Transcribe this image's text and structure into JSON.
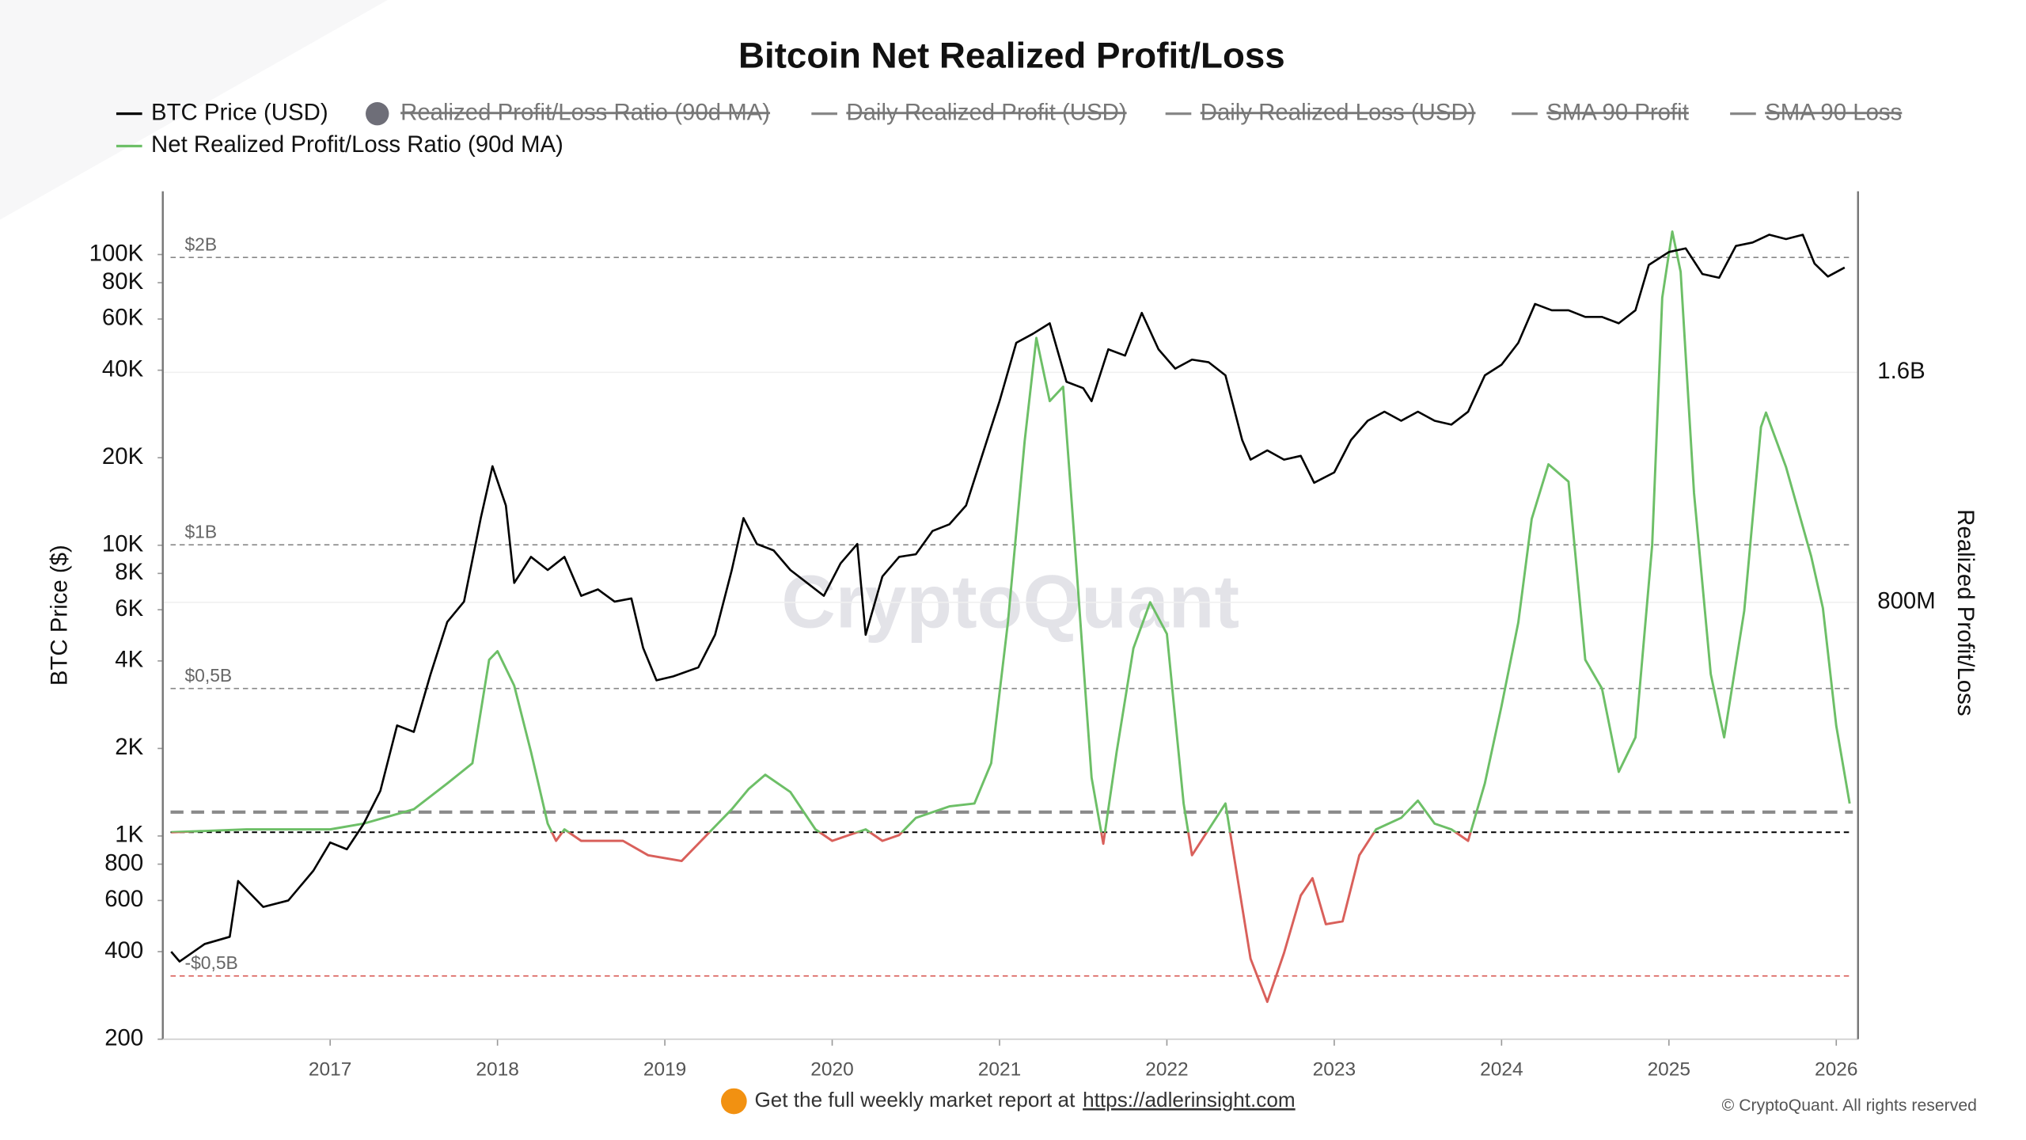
{
  "chart_data": {
    "type": "line",
    "title": "Bitcoin Net Realized Profit/Loss",
    "y_label": "BTC Price ($)",
    "y2_label": "Realized Profit/Loss",
    "watermark": "CryptoQuant",
    "footer_text": "Get the full weekly market report at",
    "footer_link": "https://adlerinsight.com",
    "copyright": "© CryptoQuant. All rights reserved",
    "xlim": [
      2016,
      2026.13
    ],
    "xticks": [
      2017,
      2018,
      2019,
      2020,
      2021,
      2022,
      2023,
      2024,
      2025,
      2026
    ],
    "ylog": true,
    "ylim": [
      200,
      165000
    ],
    "yticks": [
      200,
      400,
      600,
      800,
      {
        "value": 1000,
        "label": "1K"
      },
      {
        "value": 2000,
        "label": "2K"
      },
      {
        "value": 4000,
        "label": "4K"
      },
      {
        "value": 6000,
        "label": "6K"
      },
      {
        "value": 8000,
        "label": "8K"
      },
      {
        "value": 10000,
        "label": "10K"
      },
      {
        "value": 20000,
        "label": "20K"
      },
      {
        "value": 40000,
        "label": "40K"
      },
      {
        "value": 60000,
        "label": "60K"
      },
      {
        "value": 80000,
        "label": "80K"
      },
      {
        "value": 100000,
        "label": "100K"
      }
    ],
    "y2lim": [
      -0.72,
      2.23
    ],
    "y2ticks": [
      {
        "value": 0.8,
        "label": "800M"
      },
      {
        "value": 1.6,
        "label": "1.6B"
      }
    ],
    "grid": "y2",
    "annotations": [
      {
        "value": 2,
        "label": "$2B",
        "color": "#888888"
      },
      {
        "value": 1,
        "label": "$1B",
        "color": "#888888"
      },
      {
        "value": 0.5,
        "label": "$0,5B",
        "color": "#888888"
      },
      {
        "value": -0.5,
        "label": "-$0,5B",
        "color": "#d9605b"
      }
    ],
    "reference_lines": [
      {
        "value": 0,
        "color": "#000000"
      },
      {
        "value": 0.07,
        "color": "#8a8a8a"
      }
    ],
    "series": [
      {
        "name": "BTC Price (USD)",
        "color": "#000000",
        "marker": "line",
        "axis": "y",
        "x": [
          2016.05,
          2016.1,
          2016.25,
          2016.4,
          2016.45,
          2016.6,
          2016.75,
          2016.9,
          2017.0,
          2017.1,
          2017.2,
          2017.3,
          2017.4,
          2017.5,
          2017.6,
          2017.7,
          2017.8,
          2017.9,
          2017.97,
          2018.05,
          2018.1,
          2018.2,
          2018.3,
          2018.4,
          2018.5,
          2018.6,
          2018.7,
          2018.8,
          2018.87,
          2018.95,
          2019.05,
          2019.2,
          2019.3,
          2019.4,
          2019.47,
          2019.55,
          2019.65,
          2019.75,
          2019.85,
          2019.95,
          2020.05,
          2020.15,
          2020.2,
          2020.3,
          2020.4,
          2020.5,
          2020.6,
          2020.7,
          2020.8,
          2020.9,
          2021.0,
          2021.1,
          2021.2,
          2021.3,
          2021.4,
          2021.5,
          2021.55,
          2021.65,
          2021.75,
          2021.85,
          2021.95,
          2022.05,
          2022.15,
          2022.25,
          2022.35,
          2022.45,
          2022.5,
          2022.6,
          2022.7,
          2022.8,
          2022.88,
          2023.0,
          2023.1,
          2023.2,
          2023.3,
          2023.4,
          2023.5,
          2023.6,
          2023.7,
          2023.8,
          2023.9,
          2024.0,
          2024.1,
          2024.2,
          2024.3,
          2024.4,
          2024.5,
          2024.6,
          2024.7,
          2024.8,
          2024.88,
          2025.0,
          2025.1,
          2025.2,
          2025.3,
          2025.4,
          2025.5,
          2025.6,
          2025.7,
          2025.8,
          2025.87,
          2025.95,
          2026.05
        ],
        "values": [
          400,
          370,
          425,
          450,
          700,
          570,
          600,
          760,
          950,
          900,
          1100,
          1430,
          2400,
          2280,
          3600,
          5450,
          6400,
          12400,
          18700,
          13700,
          7420,
          9120,
          8220,
          9120,
          6700,
          7050,
          6400,
          6560,
          4440,
          3430,
          3540,
          3800,
          4920,
          8220,
          12400,
          10100,
          9600,
          8220,
          7420,
          6700,
          8660,
          10100,
          4920,
          7810,
          9120,
          9310,
          11200,
          11800,
          13700,
          20700,
          31300,
          49700,
          53400,
          58000,
          36500,
          34700,
          31300,
          47200,
          44900,
          63000,
          47200,
          40500,
          43500,
          42600,
          38400,
          23000,
          19700,
          21200,
          19700,
          20300,
          16400,
          17800,
          23000,
          26800,
          28800,
          26800,
          28800,
          26800,
          26000,
          28800,
          38400,
          41800,
          49700,
          67600,
          64300,
          64300,
          61000,
          61000,
          58000,
          64300,
          92100,
          102000,
          105000,
          85700,
          83200,
          107000,
          110000,
          117000,
          113000,
          117000,
          93100,
          84000,
          90200
        ]
      },
      {
        "name": "Realized Profit/Loss Ratio (90d MA)",
        "color": "#6e6e78",
        "marker": "circle",
        "hidden": true
      },
      {
        "name": "Daily Realized Profit (USD)",
        "color": "#888888",
        "marker": "line",
        "hidden": true
      },
      {
        "name": "Daily Realized Loss (USD)",
        "color": "#888888",
        "marker": "line",
        "hidden": true
      },
      {
        "name": "SMA 90 Profit",
        "color": "#888888",
        "marker": "line",
        "hidden": true
      },
      {
        "name": "SMA 90 Loss",
        "color": "#888888",
        "marker": "line",
        "hidden": true
      },
      {
        "name": "Net Realized Profit/Loss Ratio (90d MA)",
        "color": "#6dbf67",
        "negative_color": "#d9605b",
        "marker": "line",
        "axis": "y2",
        "x": [
          2016.05,
          2016.5,
          2017.0,
          2017.2,
          2017.5,
          2017.7,
          2017.85,
          2017.95,
          2018.0,
          2018.1,
          2018.2,
          2018.3,
          2018.35,
          2018.4,
          2018.5,
          2018.75,
          2018.9,
          2019.0,
          2019.1,
          2019.25,
          2019.4,
          2019.5,
          2019.6,
          2019.75,
          2019.9,
          2020.0,
          2020.2,
          2020.3,
          2020.4,
          2020.5,
          2020.7,
          2020.85,
          2020.95,
          2021.05,
          2021.15,
          2021.22,
          2021.3,
          2021.38,
          2021.45,
          2021.55,
          2021.62,
          2021.7,
          2021.8,
          2021.9,
          2022.0,
          2022.1,
          2022.15,
          2022.25,
          2022.35,
          2022.4,
          2022.5,
          2022.6,
          2022.7,
          2022.8,
          2022.87,
          2022.95,
          2023.05,
          2023.15,
          2023.25,
          2023.4,
          2023.5,
          2023.6,
          2023.7,
          2023.8,
          2023.9,
          2024.0,
          2024.1,
          2024.18,
          2024.28,
          2024.4,
          2024.5,
          2024.6,
          2024.7,
          2024.8,
          2024.9,
          2024.96,
          2025.02,
          2025.07,
          2025.15,
          2025.25,
          2025.33,
          2025.45,
          2025.55,
          2025.58,
          2025.7,
          2025.85,
          2025.92,
          2026.0,
          2026.08
        ],
        "values": [
          0,
          0.01,
          0.01,
          0.03,
          0.08,
          0.17,
          0.24,
          0.6,
          0.63,
          0.51,
          0.28,
          0.03,
          -0.03,
          0.01,
          -0.03,
          -0.03,
          -0.08,
          -0.09,
          -0.1,
          -0.01,
          0.08,
          0.15,
          0.2,
          0.14,
          0.01,
          -0.03,
          0.01,
          -0.03,
          -0.01,
          0.05,
          0.09,
          0.1,
          0.24,
          0.73,
          1.36,
          1.72,
          1.5,
          1.55,
          1.0,
          0.19,
          -0.04,
          0.28,
          0.64,
          0.8,
          0.69,
          0.1,
          -0.08,
          0.01,
          0.1,
          -0.08,
          -0.44,
          -0.59,
          -0.42,
          -0.22,
          -0.16,
          -0.32,
          -0.31,
          -0.08,
          0.01,
          0.05,
          0.11,
          0.03,
          0.01,
          -0.03,
          0.17,
          0.44,
          0.73,
          1.09,
          1.28,
          1.22,
          0.6,
          0.5,
          0.21,
          0.33,
          1.0,
          1.86,
          2.09,
          1.95,
          1.18,
          0.55,
          0.33,
          0.77,
          1.41,
          1.46,
          1.27,
          0.96,
          0.78,
          0.37,
          0.1
        ]
      }
    ]
  }
}
